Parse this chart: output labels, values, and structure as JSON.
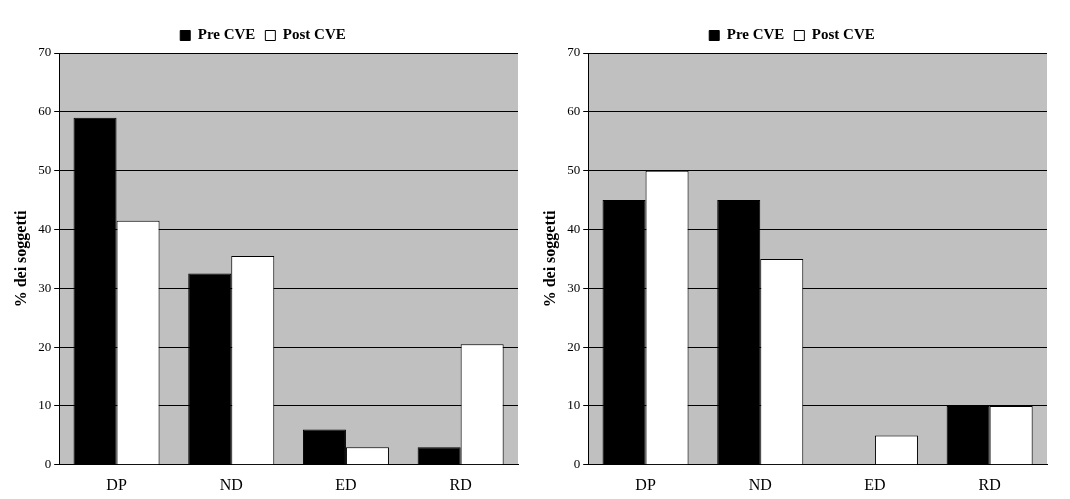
{
  "chart_data": [
    {
      "type": "bar",
      "categories": [
        "DP",
        "ND",
        "ED",
        "RD"
      ],
      "ylabel": "% dei soggetti",
      "ylim": [
        0,
        70
      ],
      "yticks": [
        0,
        10,
        20,
        30,
        40,
        50,
        60,
        70
      ],
      "grid": "y",
      "legend": "top",
      "series": [
        {
          "name": "Pre CVE",
          "color": "#000000",
          "values": [
            59,
            32.5,
            6,
            3
          ]
        },
        {
          "name": "Post CVE",
          "color": "#ffffff",
          "values": [
            41.5,
            35.5,
            3,
            20.5
          ]
        }
      ]
    },
    {
      "type": "bar",
      "categories": [
        "DP",
        "ND",
        "ED",
        "RD"
      ],
      "ylabel": "% dei soggetti",
      "ylim": [
        0,
        70
      ],
      "yticks": [
        0,
        10,
        20,
        30,
        40,
        50,
        60,
        70
      ],
      "grid": "y",
      "legend": "top",
      "series": [
        {
          "name": "Pre CVE",
          "color": "#000000",
          "values": [
            45,
            45,
            0,
            10
          ]
        },
        {
          "name": "Post CVE",
          "color": "#ffffff",
          "values": [
            50,
            35,
            5,
            10
          ]
        }
      ]
    }
  ]
}
